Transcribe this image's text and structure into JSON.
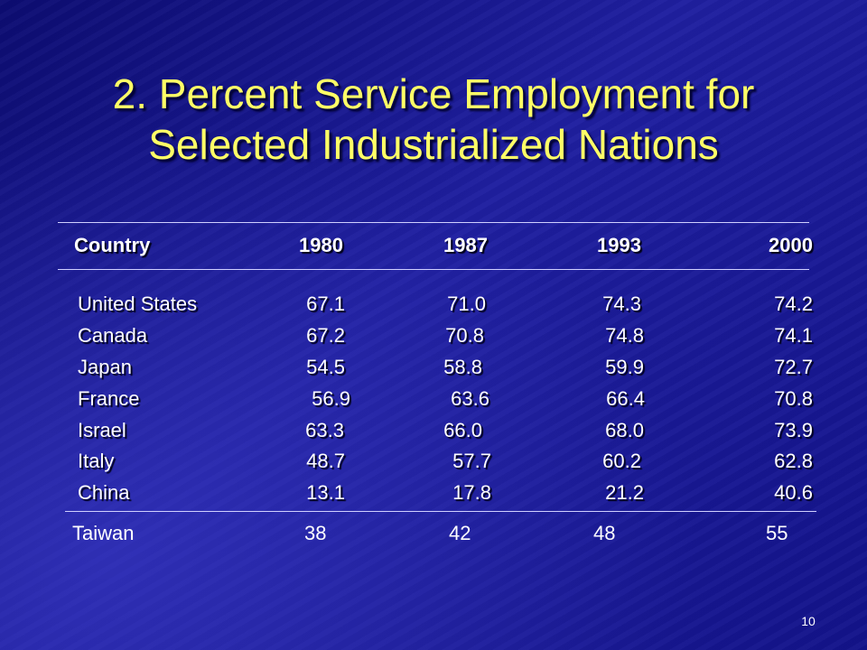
{
  "slide": {
    "title_line1": "2. Percent Service Employment for",
    "title_line2": "Selected Industrialized Nations",
    "page_number": "10"
  },
  "table": {
    "headers": [
      "Country",
      "1980",
      "1987",
      "1993",
      "2000"
    ],
    "rows": [
      [
        "United States",
        "67.1",
        "71.0",
        "74.3",
        "74.2"
      ],
      [
        "Canada",
        "67.2",
        "70.8",
        "74.8",
        "74.1"
      ],
      [
        "Japan",
        "54.5",
        "58.8",
        "59.9",
        "72.7"
      ],
      [
        "France",
        "56.9",
        "63.6",
        "66.4",
        "70.8"
      ],
      [
        "Israel",
        "63.3",
        "66.0",
        "68.0",
        "73.9"
      ],
      [
        "Italy",
        "48.7",
        "57.7",
        "60.2",
        "62.8"
      ],
      [
        "China",
        "13.1",
        "17.8",
        "21.2",
        "40.6"
      ]
    ],
    "extra_row": [
      "Taiwan",
      "38",
      "42",
      "48",
      "55"
    ]
  },
  "colors": {
    "title": "#ffff66",
    "background": "#1c1c8c",
    "text": "#ffffff"
  }
}
